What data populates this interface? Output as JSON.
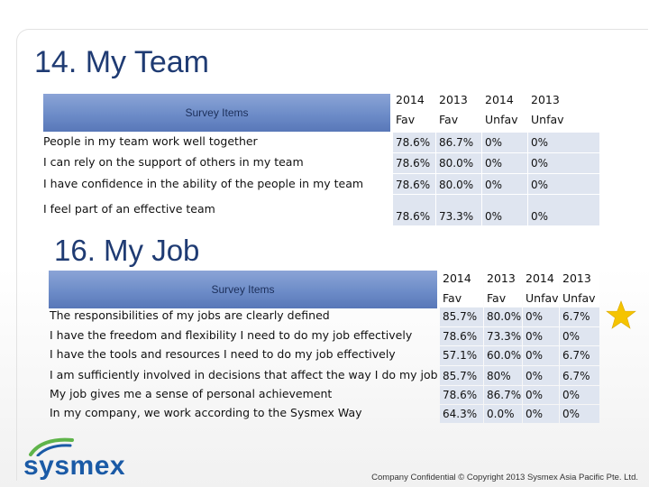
{
  "section1": {
    "title": "14. My Team",
    "header_label": "Survey Items",
    "columns": [
      "2014\nFav",
      "2013\nFav",
      "2014\nUnfav",
      "2013\nUnfav"
    ],
    "rows": [
      {
        "item": "People in my team work well together",
        "values": [
          "78.6%",
          "86.7%",
          "0%",
          "0%"
        ]
      },
      {
        "item": "I can rely on the support of others in my team",
        "values": [
          "78.6%",
          "80.0%",
          "0%",
          "0%"
        ]
      },
      {
        "item": "I have confidence in the ability of the people in my team",
        "values": [
          "78.6%",
          "80.0%",
          "0%",
          "0%"
        ]
      },
      {
        "item": "I feel part of an effective team",
        "values": [
          "78.6%",
          "73.3%",
          "0%",
          "0%"
        ]
      }
    ]
  },
  "section2": {
    "title": "16. My Job",
    "header_label": "Survey Items",
    "columns": [
      "2014\nFav",
      "2013\nFav",
      "2014\nUnfav",
      "2013\nUnfav"
    ],
    "rows": [
      {
        "item": "The responsibilities of my jobs are clearly defined",
        "values": [
          "85.7%",
          "80.0%",
          "0%",
          "6.7%"
        ]
      },
      {
        "item": "I have the freedom and flexibility I need to do my job effectively",
        "values": [
          "78.6%",
          "73.3%",
          "0%",
          "0%"
        ]
      },
      {
        "item": "I have the tools and resources I need to do my job effectively",
        "values": [
          "57.1%",
          "60.0%",
          "0%",
          "6.7%"
        ]
      },
      {
        "item": "I am sufficiently involved in decisions that affect the way I do my job",
        "values": [
          "85.7%",
          "80%",
          "0%",
          "6.7%"
        ]
      },
      {
        "item": "My job gives me a sense of personal achievement",
        "values": [
          "78.6%",
          "86.7%",
          "0%",
          "0%"
        ]
      },
      {
        "item": "In my company, we work according to the Sysmex Way",
        "values": [
          "64.3%",
          "0.0%",
          "0%",
          "0%"
        ]
      }
    ]
  },
  "logo": {
    "text": "sysmex"
  },
  "footer": "Company Confidential © Copyright 2013 Sysmex Asia Pacific Pte. Ltd.",
  "colors": {
    "title": "#1f3b73",
    "header_bar": "#6d8cc8",
    "cell_fill": "#dfe5f0",
    "star": "#f5c400",
    "logo": "#1a5aa6"
  },
  "icons": [
    "star-icon",
    "sysmex-logo-icon"
  ]
}
